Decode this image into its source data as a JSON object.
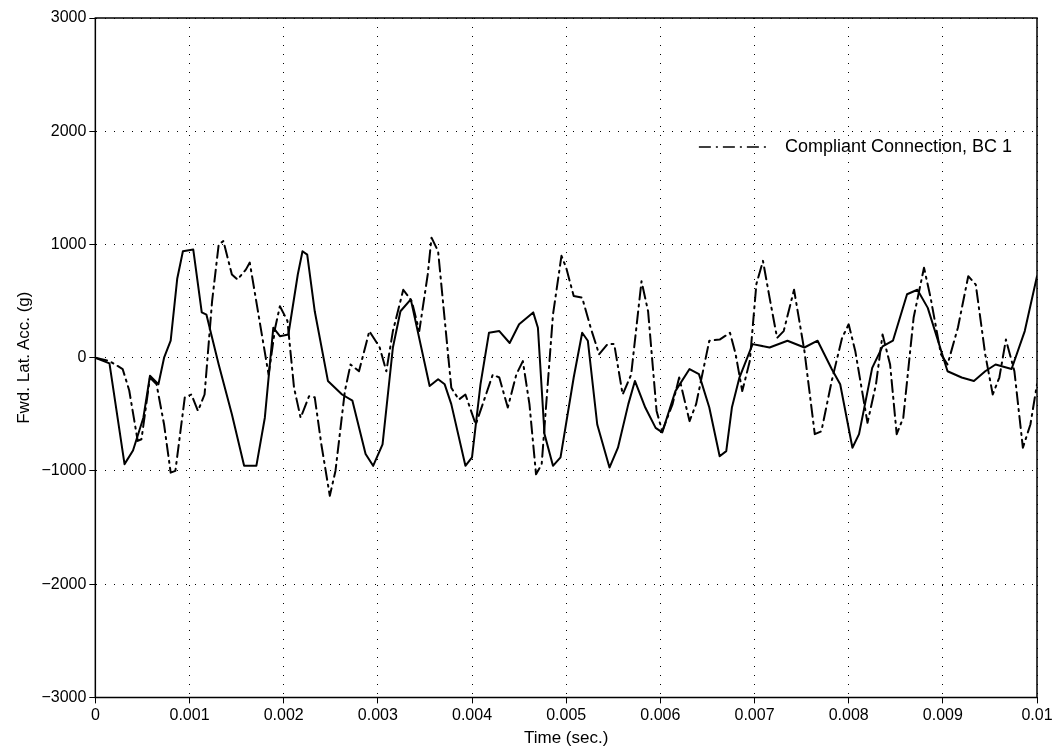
{
  "chart_data": {
    "type": "line",
    "xlabel": "Time (sec.)",
    "ylabel": "Fwd. Lat. Acc. (g)",
    "xlim": [
      0,
      0.01
    ],
    "xticks": [
      0,
      0.001,
      0.002,
      0.003,
      0.004,
      0.005,
      0.006,
      0.007,
      0.008,
      0.009,
      0.01
    ],
    "ylim": [
      -3000,
      3000
    ],
    "yticks": [
      -3000,
      -2000,
      -1000,
      0,
      1000,
      2000,
      3000
    ],
    "grid": true,
    "legend": "top right",
    "marker": "none",
    "series": [
      {
        "color": "#000000",
        "line_style": "solid",
        "x": [
          0,
          0.00015,
          0.00031,
          0.0004,
          0.00051,
          0.00058,
          0.00067,
          0.00073,
          0.0008,
          0.00087,
          0.00093,
          0.00104,
          0.00113,
          0.00118,
          0.00131,
          0.00145,
          0.00158,
          0.00171,
          0.0018,
          0.00189,
          0.00196,
          0.00205,
          0.00215,
          0.0022,
          0.00225,
          0.00233,
          0.00247,
          0.00262,
          0.00273,
          0.00287,
          0.00295,
          0.00305,
          0.00316,
          0.00324,
          0.00335,
          0.00355,
          0.00364,
          0.00371,
          0.00378,
          0.00393,
          0.004,
          0.00409,
          0.00418,
          0.00429,
          0.0044,
          0.0045,
          0.00465,
          0.0047,
          0.00477,
          0.00486,
          0.00494,
          0.00508,
          0.00517,
          0.00523,
          0.00533,
          0.00546,
          0.00555,
          0.00566,
          0.00573,
          0.00584,
          0.00595,
          0.00602,
          0.00616,
          0.00631,
          0.00641,
          0.00652,
          0.00663,
          0.0067,
          0.00676,
          0.00684,
          0.00698,
          0.00716,
          0.00735,
          0.00753,
          0.00767,
          0.00782,
          0.00791,
          0.00804,
          0.00811,
          0.00825,
          0.00836,
          0.00847,
          0.00862,
          0.00873,
          0.00884,
          0.00905,
          0.0092,
          0.00933,
          0.00945,
          0.00956,
          0.00973,
          0.00987,
          0.01
        ],
        "values": [
          0,
          -50,
          -940,
          -820,
          -530,
          -160,
          -235,
          0,
          150,
          700,
          940,
          955,
          400,
          380,
          -60,
          -500,
          -955,
          -955,
          -530,
          265,
          190,
          205,
          735,
          940,
          910,
          410,
          -205,
          -325,
          -380,
          -850,
          -955,
          -765,
          90,
          410,
          515,
          -250,
          -190,
          -235,
          -410,
          -955,
          -880,
          -235,
          220,
          235,
          130,
          295,
          400,
          265,
          -675,
          -955,
          -880,
          -175,
          220,
          150,
          -590,
          -970,
          -795,
          -410,
          -205,
          -440,
          -620,
          -660,
          -295,
          -100,
          -145,
          -440,
          -870,
          -825,
          -440,
          -175,
          120,
          90,
          150,
          90,
          150,
          -100,
          -235,
          -795,
          -675,
          -90,
          100,
          150,
          560,
          600,
          440,
          -120,
          -175,
          -205,
          -120,
          -60,
          -100,
          235,
          720
        ]
      },
      {
        "name": "Compliant Connection, BC 1",
        "color": "#000000",
        "line_style": "dashed",
        "x": [
          0,
          0.00015,
          0.00029,
          0.00036,
          0.00045,
          0.00049,
          0.00058,
          0.00065,
          0.00073,
          0.0008,
          0.00085,
          0.00095,
          0.00102,
          0.00109,
          0.00116,
          0.00124,
          0.00131,
          0.00136,
          0.00145,
          0.00151,
          0.0016,
          0.00164,
          0.00175,
          0.00184,
          0.00191,
          0.00196,
          0.00204,
          0.00211,
          0.00218,
          0.00227,
          0.00233,
          0.0024,
          0.00249,
          0.00255,
          0.00265,
          0.00271,
          0.0028,
          0.00291,
          0.00302,
          0.00309,
          0.00316,
          0.00327,
          0.00336,
          0.00344,
          0.00353,
          0.00357,
          0.00364,
          0.00378,
          0.00386,
          0.00393,
          0.00404,
          0.00422,
          0.00429,
          0.00438,
          0.00447,
          0.00454,
          0.00461,
          0.00468,
          0.00474,
          0.00486,
          0.00495,
          0.005,
          0.00508,
          0.00517,
          0.00526,
          0.00535,
          0.00544,
          0.00551,
          0.0056,
          0.00569,
          0.0058,
          0.00587,
          0.00596,
          0.00602,
          0.00613,
          0.0062,
          0.00631,
          0.00638,
          0.00652,
          0.00663,
          0.00674,
          0.0068,
          0.00687,
          0.00695,
          0.00702,
          0.00709,
          0.00716,
          0.00724,
          0.00731,
          0.00742,
          0.00753,
          0.00764,
          0.00771,
          0.00782,
          0.00793,
          0.008,
          0.00807,
          0.0082,
          0.00829,
          0.00836,
          0.00844,
          0.00851,
          0.00858,
          0.00869,
          0.0088,
          0.00887,
          0.00898,
          0.00905,
          0.00916,
          0.00927,
          0.00935,
          0.00945,
          0.00953,
          0.0096,
          0.00967,
          0.00976,
          0.00985,
          0.00993,
          0.01
        ],
        "values": [
          0,
          -30,
          -100,
          -290,
          -735,
          -720,
          -175,
          -235,
          -590,
          -1015,
          -1000,
          -350,
          -325,
          -470,
          -325,
          500,
          1000,
          1030,
          735,
          690,
          780,
          840,
          295,
          -150,
          265,
          455,
          325,
          -265,
          -530,
          -340,
          -350,
          -765,
          -1220,
          -1000,
          -295,
          -60,
          -120,
          235,
          90,
          -120,
          235,
          600,
          500,
          235,
          735,
          1060,
          940,
          -265,
          -370,
          -325,
          -590,
          -150,
          -175,
          -440,
          -150,
          -30,
          -410,
          -1030,
          -940,
          380,
          900,
          795,
          545,
          530,
          265,
          30,
          120,
          120,
          -325,
          -150,
          675,
          410,
          -470,
          -650,
          -410,
          -175,
          -560,
          -410,
          150,
          160,
          220,
          30,
          -295,
          -30,
          650,
          855,
          530,
          175,
          235,
          600,
          60,
          -675,
          -650,
          -205,
          175,
          295,
          60,
          -575,
          -235,
          205,
          -60,
          -675,
          -530,
          355,
          795,
          530,
          30,
          -60,
          265,
          720,
          645,
          30,
          -325,
          -175,
          160,
          -120,
          -795,
          -590,
          -235
        ]
      }
    ]
  }
}
